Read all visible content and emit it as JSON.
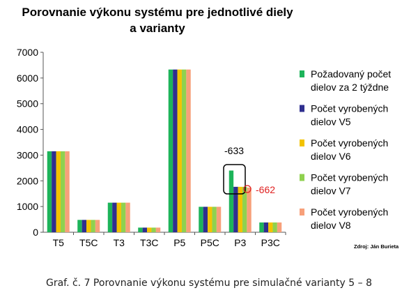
{
  "chart_data": {
    "type": "bar",
    "title_lines": [
      "Porovnanie výkonu systému pre jednotlivé diely",
      "a varianty"
    ],
    "categories": [
      "T5",
      "T5C",
      "T3",
      "T3C",
      "P5",
      "P5C",
      "P3",
      "P3C"
    ],
    "ylim": [
      0,
      7000
    ],
    "yticks": [
      "0",
      "1000",
      "2000",
      "3000",
      "4000",
      "5000",
      "6000",
      "7000"
    ],
    "grid": false,
    "legend_position": "right",
    "series": [
      {
        "name_lines": [
          "Požadovaný počet",
          "dielov za 2 týždne"
        ],
        "color": "#1db45a",
        "values": [
          3150,
          480,
          1150,
          180,
          6330,
          990,
          2400,
          380
        ]
      },
      {
        "name_lines": [
          "Počet vyrobených",
          "dielov V5"
        ],
        "color": "#2f2f8f",
        "values": [
          3150,
          480,
          1150,
          180,
          6330,
          990,
          1767,
          380
        ]
      },
      {
        "name_lines": [
          "Počet vyrobených",
          "dielov V6"
        ],
        "color": "#f3c300",
        "values": [
          3150,
          480,
          1150,
          180,
          6330,
          990,
          1767,
          380
        ]
      },
      {
        "name_lines": [
          "Počet vyrobených",
          "dielov V7"
        ],
        "color": "#8fd14f",
        "values": [
          3150,
          480,
          1150,
          180,
          6330,
          990,
          1767,
          380
        ]
      },
      {
        "name_lines": [
          "Počet vyrobených",
          "dielov V8"
        ],
        "color": "#f7a07a",
        "values": [
          3150,
          480,
          1150,
          180,
          6330,
          990,
          1738,
          380
        ]
      }
    ],
    "annotations": [
      {
        "text": "-633",
        "color": "#000000"
      },
      {
        "text": "-662",
        "color": "#e02020"
      }
    ],
    "source": "Zdroj: Ján Burieta"
  },
  "caption": "Graf. č. 7 Porovnanie výkonu systému pre simulačné varianty 5 – 8"
}
